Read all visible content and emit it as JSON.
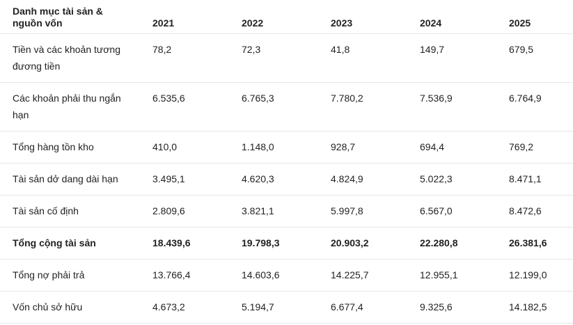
{
  "table": {
    "header": [
      "Danh mục tài sản & nguồn vốn",
      "2021",
      "2022",
      "2023",
      "2024",
      "2025"
    ],
    "rows": [
      [
        "Tiền và các khoản tương đương tiền",
        "78,2",
        "72,3",
        "41,8",
        "149,7",
        "679,5"
      ],
      [
        "Các khoản phải thu ngắn hạn",
        "6.535,6",
        "6.765,3",
        "7.780,2",
        "7.536,9",
        "6.764,9"
      ],
      [
        "Tổng hàng tồn kho",
        "410,0",
        "1.148,0",
        "928,7",
        "694,4",
        "769,2"
      ],
      [
        "Tài sản dở dang dài hạn",
        "3.495,1",
        "4.620,3",
        "4.824,9",
        "5.022,3",
        "8.471,1"
      ],
      [
        "Tài sản cố định",
        "2.809,6",
        "3.821,1",
        "5.997,8",
        "6.567,0",
        "8.472,6"
      ],
      [
        "Tổng cộng tài sản",
        "18.439,6",
        "19.798,3",
        "20.903,2",
        "22.280,8",
        "26.381,6"
      ],
      [
        "Tổng nợ phải trả",
        "13.766,4",
        "14.603,6",
        "14.225,7",
        "12.955,1",
        "12.199,0"
      ],
      [
        "Vốn chủ sở hữu",
        "4.673,2",
        "5.194,7",
        "6.677,4",
        "9.325,6",
        "14.182,5"
      ]
    ],
    "bold_row": 5
  }
}
